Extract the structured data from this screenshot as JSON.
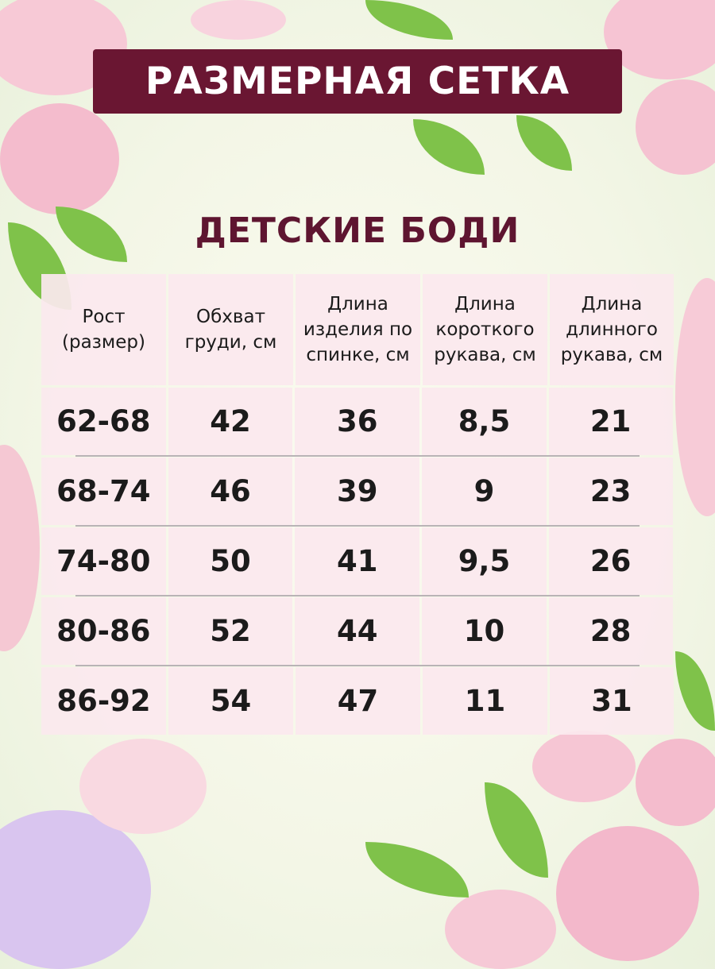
{
  "header": {
    "title": "РАЗМЕРНАЯ СЕТКА",
    "subtitle": "ДЕТСКИЕ БОДИ"
  },
  "colors": {
    "banner": "#6a1632",
    "subtitle": "#5e1530",
    "cell": "#fbe8ee"
  },
  "table": {
    "columns": [
      "Рост (размер)",
      "Обхват груди, см",
      "Длина изделия по спинке, см",
      "Длина короткого рукава, см",
      "Длина длинного рукава, см"
    ],
    "rows": [
      [
        "62-68",
        "42",
        "36",
        "8,5",
        "21"
      ],
      [
        "68-74",
        "46",
        "39",
        "9",
        "23"
      ],
      [
        "74-80",
        "50",
        "41",
        "9,5",
        "26"
      ],
      [
        "80-86",
        "52",
        "44",
        "10",
        "28"
      ],
      [
        "86-92",
        "54",
        "47",
        "11",
        "31"
      ]
    ]
  }
}
